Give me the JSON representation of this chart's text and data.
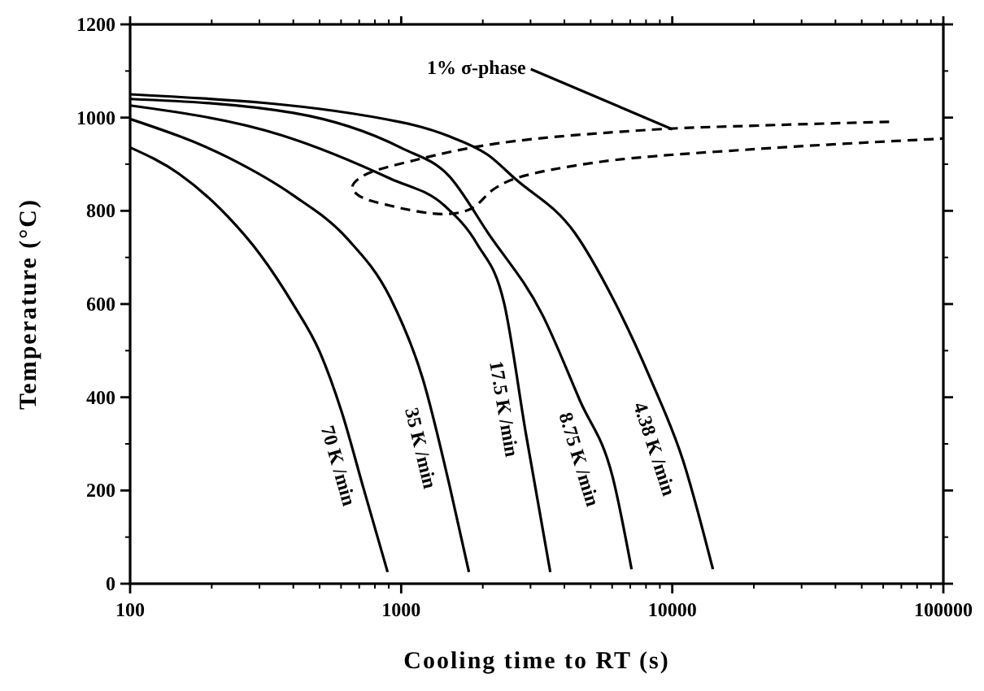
{
  "chart_data": {
    "type": "line",
    "xlabel": "Cooling time to RT (s)",
    "ylabel": "Temperature (°C)",
    "log": "x",
    "xlim": [
      100,
      100000
    ],
    "xticks": [
      100,
      1000,
      10000,
      100000
    ],
    "ylim": [
      0,
      1200
    ],
    "yticks": [
      0,
      200,
      400,
      600,
      800,
      1000,
      1200
    ],
    "grid": false,
    "legend": false,
    "line_style": "solid",
    "annotations": [
      {
        "text": "1% σ-phase",
        "x": 10000,
        "y": 975
      }
    ],
    "series": [
      {
        "name": "70 K /min",
        "color": "#000000",
        "x": [
          100,
          151,
          229,
          302,
          398,
          501,
          603,
          725,
          891
        ],
        "values": [
          936,
          880,
          788,
          706,
          601,
          497,
          369,
          206,
          25
        ]
      },
      {
        "name": "35 K /min",
        "color": "#000000",
        "x": [
          100,
          229,
          398,
          631,
          912,
          1202,
          1514,
          1778
        ],
        "values": [
          997,
          915,
          834,
          741,
          613,
          439,
          206,
          25
        ]
      },
      {
        "name": "17.5 K /min",
        "color": "#000000",
        "x": [
          100,
          363,
          912,
          1445,
          1905,
          2399,
          2884,
          3548
        ],
        "values": [
          1026,
          962,
          869,
          811,
          729,
          601,
          322,
          25
        ]
      },
      {
        "name": "8.75 K /min",
        "color": "#000000",
        "x": [
          100,
          400,
          1000,
          1500,
          2089,
          3311,
          4571,
          6026,
          7079
        ],
        "values": [
          1040,
          1010,
          935,
          875,
          753,
          578,
          392,
          229,
          31
        ]
      },
      {
        "name": "4.38 K /min",
        "color": "#000000",
        "x": [
          100,
          1000,
          1500,
          2089,
          2630,
          4365,
          6026,
          8318,
          10965,
          14125
        ],
        "values": [
          1050,
          990,
          960,
          920,
          869,
          753,
          613,
          439,
          264,
          31
        ]
      },
      {
        "type": "line",
        "line_style": "dashed",
        "color": "#000000",
        "x": [
          63096,
          20893,
          8318,
          2291,
          1148,
          724,
          661,
          692,
          912,
          1445,
          1819,
          2188,
          2630,
          5248,
          20893,
          100000
        ],
        "values": [
          991,
          983,
          974,
          945,
          910,
          875,
          852,
          834,
          811,
          793,
          805,
          846,
          869,
          904,
          933,
          955
        ]
      }
    ]
  }
}
